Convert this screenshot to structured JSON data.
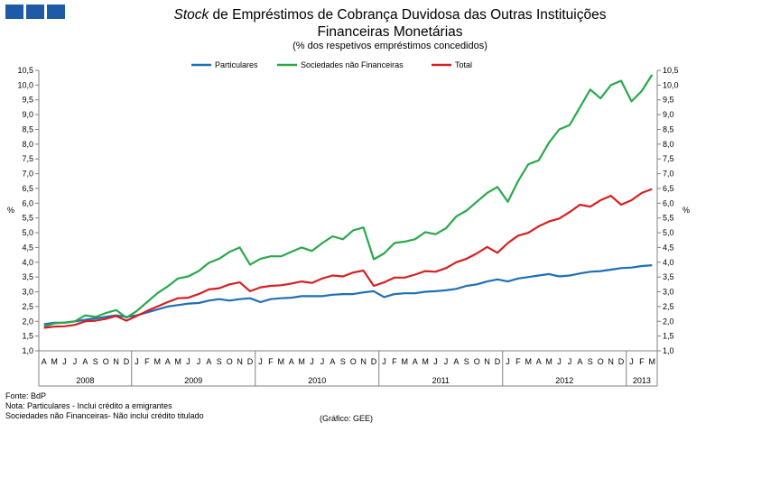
{
  "title": {
    "italic": "Stock",
    "line1_rest": " de Empréstimos de Cobrança Duvidosa das Outras Instituições",
    "line2": "Financeiras Monetárias"
  },
  "subtitle": "(% dos respetivos empréstimos concedidos)",
  "colors": {
    "particulares": "#1f6fb4",
    "sociedades": "#2aa84a",
    "total": "#d62020",
    "logo": "#1f5aa6"
  },
  "chart_data": {
    "type": "line",
    "title": "Stock de Empréstimos de Cobrança Duvidosa das Outras Instituições Financeiras Monetárias",
    "ylabel_left": "%",
    "ylabel_right": "%",
    "ylim": [
      1.0,
      10.5
    ],
    "yticks": [
      "1,0",
      "1,5",
      "2,0",
      "2,5",
      "3,0",
      "3,5",
      "4,0",
      "4,5",
      "5,0",
      "5,5",
      "6,0",
      "6,5",
      "7,0",
      "7,5",
      "8,0",
      "8,5",
      "9,0",
      "9,5",
      "10,0",
      "10,5"
    ],
    "categories": [
      "A",
      "M",
      "J",
      "J",
      "A",
      "S",
      "O",
      "N",
      "D",
      "J",
      "F",
      "M",
      "A",
      "M",
      "J",
      "J",
      "A",
      "S",
      "O",
      "N",
      "D",
      "J",
      "F",
      "M",
      "A",
      "M",
      "J",
      "J",
      "A",
      "S",
      "O",
      "N",
      "D",
      "J",
      "F",
      "M",
      "A",
      "M",
      "J",
      "J",
      "A",
      "S",
      "O",
      "N",
      "D",
      "J",
      "F",
      "M",
      "A",
      "M",
      "J",
      "J",
      "A",
      "S",
      "O",
      "N",
      "D",
      "J",
      "F",
      "M"
    ],
    "years": [
      {
        "label": "2008",
        "start": 0,
        "end": 9
      },
      {
        "label": "2009",
        "start": 9,
        "end": 21
      },
      {
        "label": "2010",
        "start": 21,
        "end": 33
      },
      {
        "label": "2011",
        "start": 33,
        "end": 45
      },
      {
        "label": "2012",
        "start": 45,
        "end": 57
      },
      {
        "label": "2013",
        "start": 57,
        "end": 60
      }
    ],
    "legend_position": "top-center",
    "series": [
      {
        "name": "Particulares",
        "key": "particulares",
        "values": [
          1.9,
          1.95,
          1.95,
          2.0,
          2.05,
          2.1,
          2.15,
          2.2,
          2.15,
          2.2,
          2.3,
          2.4,
          2.5,
          2.55,
          2.6,
          2.62,
          2.7,
          2.75,
          2.7,
          2.75,
          2.78,
          2.65,
          2.75,
          2.78,
          2.8,
          2.85,
          2.85,
          2.85,
          2.9,
          2.92,
          2.92,
          2.98,
          3.02,
          2.82,
          2.92,
          2.95,
          2.95,
          3.0,
          3.02,
          3.05,
          3.1,
          3.2,
          3.25,
          3.35,
          3.42,
          3.35,
          3.45,
          3.5,
          3.55,
          3.6,
          3.52,
          3.55,
          3.62,
          3.68,
          3.7,
          3.75,
          3.8,
          3.82,
          3.87,
          3.9
        ]
      },
      {
        "name": "Sociedades não Financeiras",
        "key": "sociedades",
        "values": [
          1.82,
          1.93,
          1.96,
          2.0,
          2.2,
          2.15,
          2.28,
          2.38,
          2.12,
          2.35,
          2.65,
          2.95,
          3.18,
          3.45,
          3.52,
          3.7,
          3.98,
          4.12,
          4.35,
          4.5,
          3.92,
          4.12,
          4.2,
          4.2,
          4.35,
          4.5,
          4.38,
          4.65,
          4.88,
          4.78,
          5.08,
          5.18,
          4.1,
          4.3,
          4.65,
          4.7,
          4.78,
          5.02,
          4.95,
          5.15,
          5.55,
          5.75,
          6.05,
          6.35,
          6.55,
          6.05,
          6.75,
          7.32,
          7.45,
          8.05,
          8.5,
          8.65,
          9.25,
          9.85,
          9.55,
          10.0,
          10.15,
          9.45,
          9.8,
          10.35
        ]
      },
      {
        "name": "Total",
        "key": "total",
        "values": [
          1.78,
          1.82,
          1.83,
          1.88,
          2.0,
          2.02,
          2.08,
          2.18,
          2.02,
          2.18,
          2.35,
          2.5,
          2.65,
          2.78,
          2.8,
          2.92,
          3.08,
          3.12,
          3.25,
          3.32,
          3.02,
          3.15,
          3.2,
          3.22,
          3.28,
          3.35,
          3.3,
          3.45,
          3.55,
          3.52,
          3.65,
          3.72,
          3.2,
          3.32,
          3.48,
          3.48,
          3.58,
          3.7,
          3.68,
          3.8,
          4.0,
          4.12,
          4.3,
          4.52,
          4.32,
          4.65,
          4.9,
          5.0,
          5.22,
          5.38,
          5.48,
          5.7,
          5.95,
          5.88,
          6.1,
          6.25,
          5.95,
          6.1,
          6.35,
          6.48
        ]
      }
    ]
  },
  "notes": {
    "fonte": "Fonte: BdP",
    "nota": "Nota: Particulares - Inclui crédito a emigrantes",
    "sociedades": "Sociedades não Financeiras- Não inclui crédito titulado",
    "grafico": "(Gráfico: GEE)"
  }
}
